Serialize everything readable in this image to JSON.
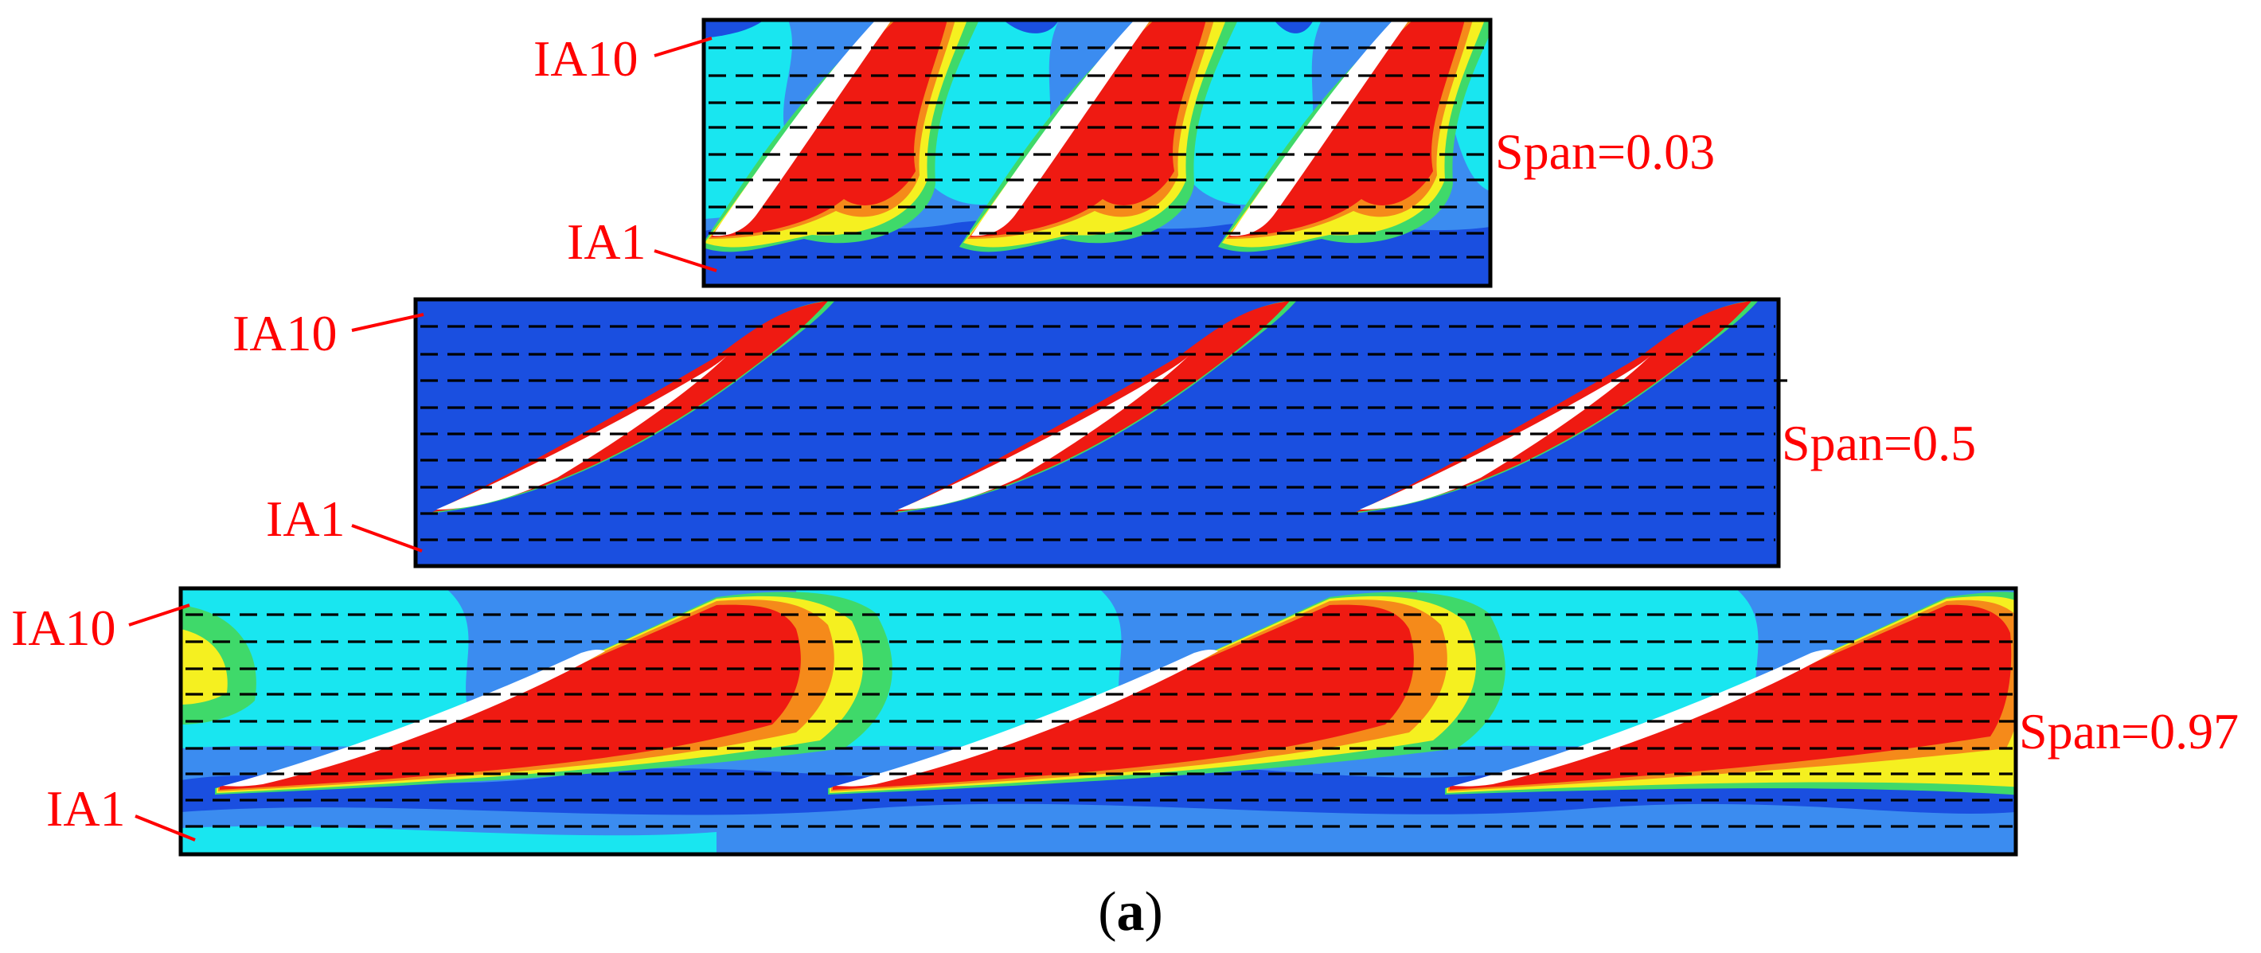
{
  "figure": {
    "panels": [
      {
        "span_label": "Span=0.03",
        "top_label": "IA10",
        "bottom_label": "IA1"
      },
      {
        "span_label": "Span=0.5",
        "top_label": "IA10",
        "bottom_label": "IA1"
      },
      {
        "span_label": "Span=0.97",
        "top_label": "IA10",
        "bottom_label": "IA1"
      }
    ],
    "caption": {
      "open": "(",
      "letter": "a",
      "close": ")"
    },
    "colors": {
      "background_blue": "#1a4fe0",
      "mid_blue": "#3b8cf0",
      "cyan": "#19e6f0",
      "green": "#3fd96a",
      "yellow": "#f5f020",
      "orange": "#f58a1a",
      "red": "#ef1a12",
      "blade_white": "#ffffff",
      "label_red": "#ff0000"
    }
  }
}
